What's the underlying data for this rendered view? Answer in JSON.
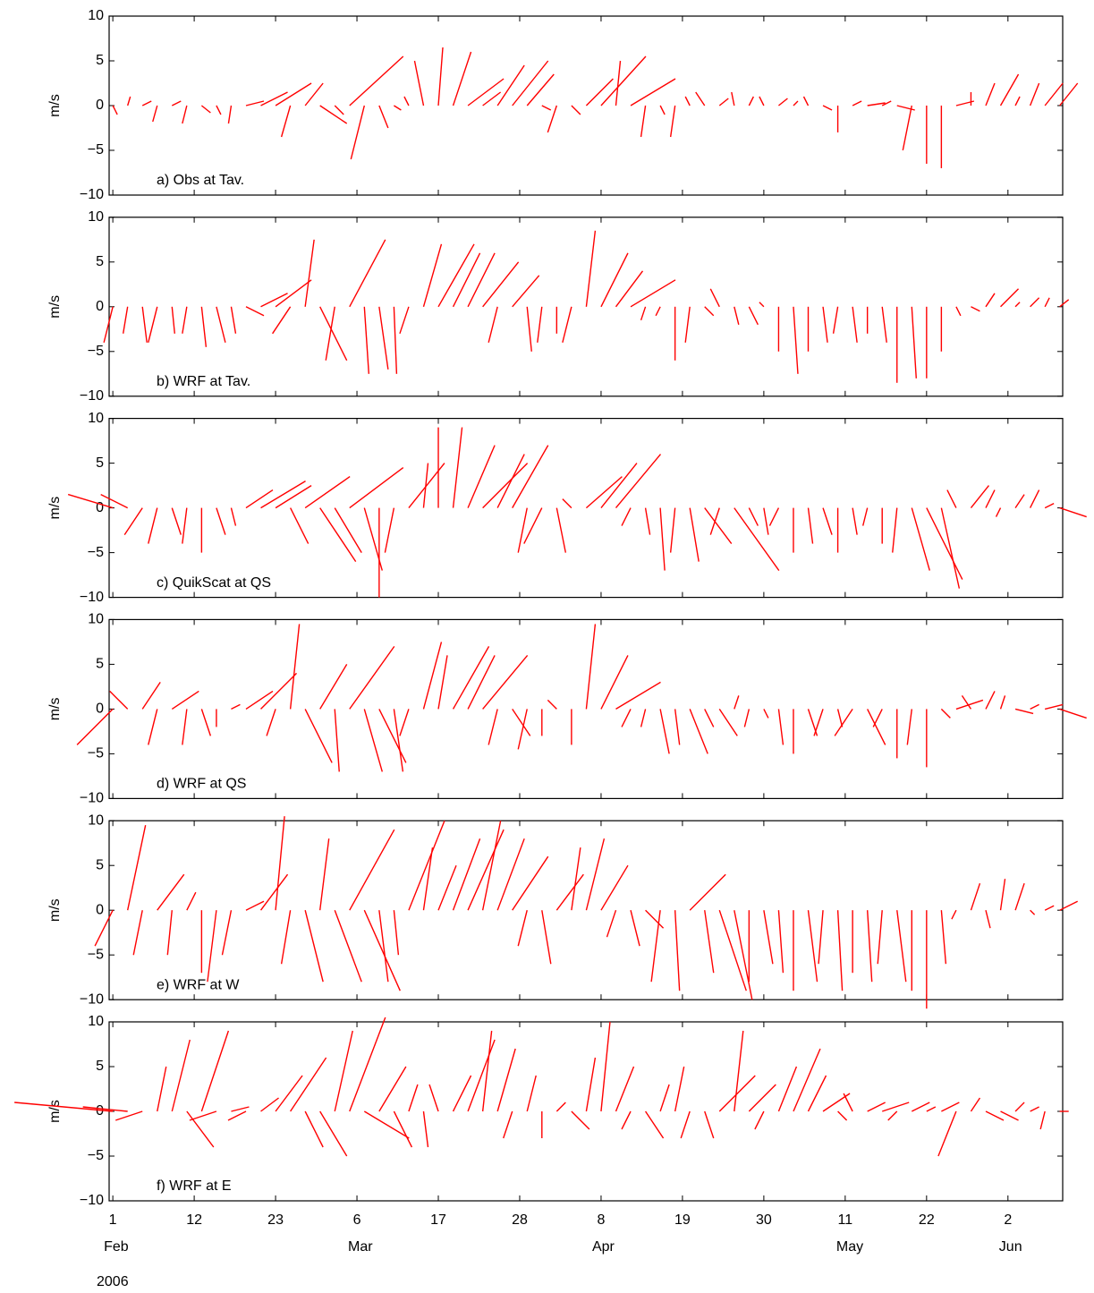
{
  "chart_data": [
    {
      "type": "stick",
      "label": "a) Obs at Tav.",
      "ylabel": "m/s",
      "color": "#ff0000",
      "ylim": [
        -10,
        10
      ],
      "yticks": [
        {
          "value": -10,
          "label": "−10"
        },
        {
          "value": -5,
          "label": "−5"
        },
        0,
        5,
        10
      ],
      "x": [
        0,
        2,
        4,
        6,
        8,
        10,
        12,
        14,
        16,
        18,
        20,
        22,
        24,
        26,
        28,
        30,
        32,
        34,
        36,
        38,
        40,
        42,
        44,
        46,
        48,
        50,
        52,
        54,
        56,
        58,
        60,
        62,
        64,
        66,
        68,
        70,
        72,
        74,
        76,
        78,
        80,
        82,
        84,
        86,
        88,
        90,
        92,
        94,
        96,
        98,
        100,
        102,
        104,
        106,
        108,
        110,
        112,
        114,
        116,
        118,
        120,
        122,
        124,
        126,
        128
      ],
      "u": [
        0.5,
        0.3,
        1,
        -0.5,
        1,
        -0.5,
        1,
        0.5,
        -0.3,
        2,
        3,
        4,
        -1,
        2,
        3,
        1,
        6,
        -1.5,
        1,
        0.8,
        -0.5,
        -1,
        0.5,
        2,
        4,
        2,
        3,
        4,
        3,
        1,
        -1,
        1,
        3,
        5,
        0.5,
        5,
        -0.5,
        0.5,
        -0.5,
        -0.5,
        -1,
        1,
        -0.3,
        0.5,
        -0.5,
        1,
        0.5,
        -0.5,
        1,
        0,
        1,
        2,
        1,
        2,
        -1,
        0,
        0,
        2,
        0,
        1,
        2,
        0.5,
        1,
        2,
        2
      ],
      "v": [
        -1,
        1,
        0.5,
        -1.8,
        0.5,
        -2,
        -0.8,
        -1,
        -2,
        0.5,
        1.5,
        2.5,
        -3.5,
        2.5,
        -2,
        -1,
        5.5,
        -6,
        -2.5,
        -0.5,
        1,
        5,
        6.5,
        6,
        3,
        1.5,
        4.5,
        5,
        3.5,
        -0.5,
        -3,
        -1,
        3,
        5.5,
        5,
        3,
        -3.5,
        -1,
        -3.5,
        1,
        1.5,
        0.8,
        1.5,
        1,
        1,
        0.8,
        0.5,
        1,
        -0.5,
        -3,
        0.5,
        0.3,
        0.5,
        -0.5,
        -5,
        -6.5,
        -7,
        0.5,
        1.5,
        2.5,
        3.5,
        1,
        2.5,
        2.5,
        2.5
      ]
    },
    {
      "type": "stick",
      "label": "b) WRF at Tav.",
      "ylabel": "m/s",
      "color": "#ff0000",
      "ylim": [
        -10,
        10
      ],
      "yticks": [
        {
          "value": -10,
          "label": "−10"
        },
        {
          "value": -5,
          "label": "−5"
        },
        0,
        5,
        10
      ],
      "x": [
        0,
        2,
        4,
        6,
        8,
        10,
        12,
        14,
        16,
        18,
        20,
        22,
        24,
        26,
        28,
        30,
        32,
        34,
        36,
        38,
        40,
        42,
        44,
        46,
        48,
        50,
        52,
        54,
        56,
        58,
        60,
        62,
        64,
        66,
        68,
        70,
        72,
        74,
        76,
        78,
        80,
        82,
        84,
        86,
        88,
        90,
        92,
        94,
        96,
        98,
        100,
        102,
        104,
        106,
        108,
        110,
        112,
        114,
        116,
        118,
        120,
        122,
        124,
        126,
        128
      ],
      "u": [
        -1,
        -0.5,
        0.5,
        -1,
        0.3,
        -0.5,
        0.5,
        1,
        0.5,
        2,
        3,
        4,
        -2,
        1,
        3,
        -1,
        4,
        0.5,
        1,
        0.3,
        -1,
        2,
        4,
        3,
        3,
        4,
        -1,
        3,
        0.5,
        -0.5,
        0,
        -1,
        1,
        3,
        3,
        5,
        -0.5,
        -0.5,
        0,
        -0.5,
        1,
        -1,
        0.5,
        1,
        -0.5,
        0,
        0.5,
        0,
        0.5,
        -0.5,
        0.5,
        0,
        0.5,
        0,
        0.5,
        0,
        0,
        0.5,
        1,
        1,
        2,
        0.5,
        1,
        0.5,
        1
      ],
      "v": [
        -4,
        -3,
        -4,
        -4,
        -3,
        -3,
        -4.5,
        -4,
        -3,
        -1,
        1.5,
        3,
        -3,
        7.5,
        -6,
        -6,
        7.5,
        -7.5,
        -7,
        -7.5,
        -3,
        7,
        7,
        6,
        6,
        5,
        -4,
        3.5,
        -5,
        -4,
        -3,
        -4,
        8.5,
        6,
        4,
        3,
        -1.5,
        -1,
        -6,
        -4,
        -1,
        2,
        -2,
        -2,
        0.5,
        -5,
        -7.5,
        -5,
        -4,
        -3,
        -4,
        -3,
        -4,
        -8.5,
        -8,
        -8,
        -5,
        -1,
        -0.5,
        1.5,
        2,
        0.5,
        1,
        1,
        0.8
      ]
    },
    {
      "type": "stick",
      "label": "c) QuikScat at QS",
      "ylabel": "m/s",
      "color": "#ff0000",
      "ylim": [
        -10,
        10
      ],
      "yticks": [
        {
          "value": -10,
          "label": "−10"
        },
        {
          "value": -5,
          "label": "−5"
        },
        0,
        5,
        10
      ],
      "x": [
        0,
        2,
        4,
        6,
        8,
        10,
        12,
        14,
        16,
        18,
        20,
        22,
        24,
        26,
        28,
        30,
        32,
        34,
        36,
        38,
        40,
        42,
        44,
        46,
        48,
        50,
        52,
        54,
        56,
        58,
        60,
        62,
        64,
        66,
        68,
        70,
        72,
        74,
        76,
        78,
        80,
        82,
        84,
        86,
        88,
        90,
        92,
        94,
        96,
        98,
        100,
        102,
        104,
        106,
        108,
        110,
        112,
        114,
        116,
        118,
        120,
        122,
        124,
        126,
        128
      ],
      "u": [
        -5,
        -3,
        -2,
        -1,
        1,
        -0.5,
        0,
        1,
        0.5,
        3,
        5,
        4,
        2,
        5,
        4,
        3,
        6,
        2,
        0,
        -1,
        4,
        0.5,
        0,
        1,
        3,
        5,
        3,
        4,
        -1,
        -2,
        1,
        -1,
        4,
        4,
        5,
        -1,
        0.5,
        0.5,
        -0.5,
        1,
        3,
        -1,
        5,
        1,
        0.5,
        -1,
        0,
        0.5,
        1,
        0,
        0.5,
        -0.5,
        0,
        -0.5,
        2,
        4,
        2,
        -1,
        2,
        1,
        -0.5,
        1,
        1,
        1,
        3
      ],
      "v": [
        1.5,
        1.5,
        -3,
        -4,
        -3,
        -4,
        -5,
        -3,
        -2,
        2,
        3,
        2.5,
        -4,
        3.5,
        -6,
        -5,
        4.5,
        -7,
        -10,
        -5,
        5,
        5,
        9,
        9,
        7,
        5,
        6,
        7,
        -5,
        -4,
        -5,
        1,
        3.5,
        5,
        6,
        -2,
        -3,
        -7,
        -5,
        -6,
        -4,
        -3,
        -7,
        -2,
        -3,
        -2,
        -5,
        -4,
        -3,
        -5,
        -3,
        -2,
        -4,
        -5,
        -7,
        -8,
        -9,
        2,
        2.5,
        2,
        -1,
        1.5,
        2,
        0.5,
        -1
      ]
    },
    {
      "type": "stick",
      "label": "d) WRF at QS",
      "ylabel": "m/s",
      "color": "#ff0000",
      "ylim": [
        -10,
        10
      ],
      "yticks": [
        {
          "value": -10,
          "label": "−10"
        },
        {
          "value": -5,
          "label": "−5"
        },
        0,
        5,
        10
      ],
      "x": [
        0,
        2,
        4,
        6,
        8,
        10,
        12,
        14,
        16,
        18,
        20,
        22,
        24,
        26,
        28,
        30,
        32,
        34,
        36,
        38,
        40,
        42,
        44,
        46,
        48,
        50,
        52,
        54,
        56,
        58,
        60,
        62,
        64,
        66,
        68,
        70,
        72,
        74,
        76,
        78,
        80,
        82,
        84,
        86,
        88,
        90,
        92,
        94,
        96,
        98,
        100,
        102,
        104,
        106,
        108,
        110,
        112,
        114,
        116,
        118,
        120,
        122,
        124,
        126,
        128
      ],
      "u": [
        -4,
        -2,
        2,
        -1,
        3,
        -0.5,
        1,
        0,
        1,
        3,
        4,
        -1,
        1,
        3,
        3,
        0.5,
        5,
        2,
        3,
        1,
        -1,
        2,
        1,
        4,
        3,
        5,
        -1,
        2,
        -1,
        0,
        -1,
        0,
        1,
        3,
        5,
        -1,
        -0.5,
        1,
        0.5,
        2,
        1,
        2,
        0.5,
        -0.5,
        0.5,
        0.5,
        0,
        1,
        -1,
        0.5,
        -2,
        2,
        -1,
        0,
        -0.5,
        0,
        1,
        3,
        -1,
        1,
        0.5,
        2,
        1,
        2,
        3
      ],
      "v": [
        -4,
        2,
        3,
        -4,
        2,
        -4,
        -3,
        -2,
        0.5,
        2,
        4,
        -3,
        9.5,
        -6,
        5,
        -7,
        7,
        -7,
        -6,
        -7,
        -3,
        7.5,
        6,
        7,
        6,
        6,
        -4,
        -3,
        -4.5,
        -3,
        1,
        -4,
        9.5,
        6,
        3,
        -2,
        -2,
        -5,
        -4,
        -5,
        -2,
        -3,
        1.5,
        -2,
        -1,
        -4,
        -5,
        -3,
        -3,
        -2,
        -3,
        -4,
        -2,
        -5.5,
        -4,
        -6.5,
        -1,
        1,
        1.5,
        2,
        1.5,
        -0.5,
        0.5,
        0.5,
        -1
      ]
    },
    {
      "type": "stick",
      "label": "e) WRF at W",
      "ylabel": "m/s",
      "color": "#ff0000",
      "ylim": [
        -10,
        10
      ],
      "yticks": [
        {
          "value": -10,
          "label": "−10"
        },
        {
          "value": -5,
          "label": "−5"
        },
        0,
        5,
        10
      ],
      "x": [
        0,
        2,
        4,
        6,
        8,
        10,
        12,
        14,
        16,
        18,
        20,
        22,
        24,
        26,
        28,
        30,
        32,
        34,
        36,
        38,
        40,
        42,
        44,
        46,
        48,
        50,
        52,
        54,
        56,
        58,
        60,
        62,
        64,
        66,
        68,
        70,
        72,
        74,
        76,
        78,
        80,
        82,
        84,
        86,
        88,
        90,
        92,
        94,
        96,
        98,
        100,
        102,
        104,
        106,
        108,
        110,
        112,
        114,
        116,
        118,
        120,
        122,
        124,
        126,
        128
      ],
      "u": [
        -2,
        2,
        -1,
        3,
        -0.5,
        1,
        0,
        -1,
        -1,
        2,
        3,
        1,
        -1,
        2,
        1,
        3,
        5,
        4,
        1,
        0.5,
        4,
        1,
        2,
        3,
        4,
        2,
        3,
        4,
        -1,
        1,
        3,
        1,
        2,
        3,
        -1,
        1,
        2,
        -1,
        0.5,
        4,
        1,
        3,
        2,
        0,
        1,
        0.5,
        0,
        1,
        -0.5,
        0.5,
        0,
        0.5,
        -0.5,
        1,
        0,
        0,
        0.5,
        -0.5,
        1,
        0.5,
        0.5,
        1,
        0.5,
        1,
        2
      ],
      "v": [
        -4,
        9.5,
        -5,
        4,
        -5,
        2,
        -7,
        -8,
        -5,
        1,
        4,
        10.5,
        -6,
        -8,
        8,
        -8,
        9,
        -9,
        -8,
        -5,
        10,
        7,
        5,
        8,
        9,
        10,
        8,
        6,
        -4,
        -6,
        4,
        7,
        8,
        5,
        -3,
        -4,
        -2,
        -8,
        -9,
        4,
        -7,
        -9,
        -10,
        -8,
        -6,
        -7,
        -9,
        -8,
        -6,
        -9,
        -7,
        -8,
        -6,
        -8,
        -9,
        -11,
        -6,
        -1,
        3,
        -2,
        3.5,
        3,
        -0.5,
        0.5,
        1
      ]
    },
    {
      "type": "stick",
      "label": "f) WRF at E",
      "ylabel": "m/s",
      "color": "#ff0000",
      "ylim": [
        -10,
        10
      ],
      "yticks": [
        {
          "value": -10,
          "label": "−10"
        },
        {
          "value": -5,
          "label": "−5"
        },
        0,
        5,
        10
      ],
      "x": [
        0,
        2,
        4,
        6,
        8,
        10,
        12,
        14,
        16,
        18,
        20,
        22,
        24,
        26,
        28,
        30,
        32,
        34,
        36,
        38,
        40,
        42,
        44,
        46,
        48,
        50,
        52,
        54,
        56,
        58,
        60,
        62,
        64,
        66,
        68,
        70,
        72,
        74,
        76,
        78,
        80,
        82,
        84,
        86,
        88,
        90,
        92,
        94,
        96,
        98,
        100,
        102,
        104,
        106,
        108,
        110,
        112,
        114,
        116,
        118,
        120,
        122,
        124,
        126,
        128
      ],
      "u": [
        -11,
        -5,
        -3,
        1,
        2,
        3,
        3,
        -3,
        2,
        -2,
        2,
        3,
        4,
        2,
        3,
        2,
        4,
        5,
        3,
        2,
        1,
        0.5,
        -1,
        2,
        3,
        1,
        2,
        -1,
        1,
        0,
        1,
        2,
        1,
        1,
        2,
        -1,
        2,
        1,
        1,
        -1,
        1,
        4,
        1,
        3,
        -1,
        2,
        3,
        2,
        3,
        1,
        -1,
        2,
        3,
        -1,
        2,
        1,
        2,
        -2,
        1,
        2,
        2,
        1,
        1,
        -0.5,
        1
      ],
      "v": [
        1,
        0.5,
        -1,
        5,
        8,
        -4,
        9,
        -1,
        0.5,
        -1,
        1.5,
        4,
        6,
        -4,
        -5,
        9,
        10.5,
        -3,
        5,
        -4,
        3,
        -4,
        3,
        4,
        8,
        9,
        7,
        -3,
        4,
        -3,
        1,
        -2,
        6,
        10,
        5,
        -2,
        -3,
        3,
        5,
        -3,
        -3,
        4,
        9,
        3,
        -2,
        5,
        7,
        4,
        2,
        -1,
        2,
        1,
        1,
        -1,
        1,
        0.5,
        1,
        -5,
        1.5,
        -1,
        -1,
        1,
        0.5,
        -2,
        0
      ],
      "xlim": [
        -0.5,
        128.4
      ],
      "xticks": [
        {
          "value": 0,
          "label": "1"
        },
        {
          "value": 11,
          "label": "12"
        },
        {
          "value": 22,
          "label": "23"
        },
        {
          "value": 33,
          "label": "6"
        },
        {
          "value": 44,
          "label": "17"
        },
        {
          "value": 55,
          "label": "28"
        },
        {
          "value": 66,
          "label": "8"
        },
        {
          "value": 77,
          "label": "19"
        },
        {
          "value": 88,
          "label": "30"
        },
        {
          "value": 99,
          "label": "11"
        },
        {
          "value": 110,
          "label": "22"
        },
        {
          "value": 121,
          "label": "2"
        }
      ],
      "month_labels": [
        {
          "value": 0,
          "label": "Feb"
        },
        {
          "value": 33,
          "label": "Mar"
        },
        {
          "value": 66,
          "label": "Apr"
        },
        {
          "value": 99,
          "label": "May"
        },
        {
          "value": 121,
          "label": "Jun"
        }
      ],
      "xlabel": "2006"
    }
  ]
}
